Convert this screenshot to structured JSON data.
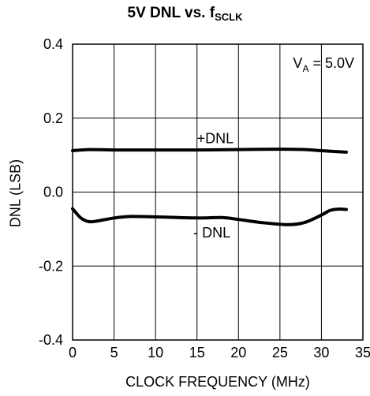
{
  "chart_data": {
    "type": "line",
    "title_main": "5V DNL vs. f",
    "title_sub": "SCLK",
    "xlabel": "CLOCK FREQUENCY (MHz)",
    "ylabel": "DNL (LSB)",
    "xlim": [
      0,
      35
    ],
    "ylim": [
      -0.4,
      0.4
    ],
    "xticks": [
      0,
      5,
      10,
      15,
      20,
      25,
      30,
      35
    ],
    "yticks": [
      -0.4,
      -0.2,
      0.0,
      0.2,
      0.4
    ],
    "ytick_labels": [
      "-0.4",
      "-0.2",
      "0.0",
      "0.2",
      "0.4"
    ],
    "grid": true,
    "annotation": {
      "prefix": "V",
      "sub": "A",
      "suffix": " = 5.0V"
    },
    "series": [
      {
        "name": "+DNL",
        "x": [
          0,
          2,
          5,
          10,
          15,
          20,
          25,
          28,
          30,
          33
        ],
        "y": [
          0.112,
          0.115,
          0.114,
          0.114,
          0.114,
          0.115,
          0.116,
          0.115,
          0.112,
          0.108
        ]
      },
      {
        "name": "- DNL",
        "x": [
          0,
          1,
          2,
          3,
          5,
          7,
          10,
          15,
          18,
          20,
          23,
          26,
          28,
          30,
          31,
          32,
          33
        ],
        "y": [
          -0.045,
          -0.07,
          -0.08,
          -0.078,
          -0.07,
          -0.066,
          -0.067,
          -0.07,
          -0.069,
          -0.074,
          -0.083,
          -0.088,
          -0.082,
          -0.062,
          -0.05,
          -0.046,
          -0.047
        ]
      }
    ],
    "series_label_positions": [
      {
        "x": 17.2,
        "y": 0.145
      },
      {
        "x": 16.8,
        "y": -0.11
      }
    ],
    "colors": {
      "line": "#000000",
      "grid": "#000000",
      "background": "#ffffff"
    }
  }
}
